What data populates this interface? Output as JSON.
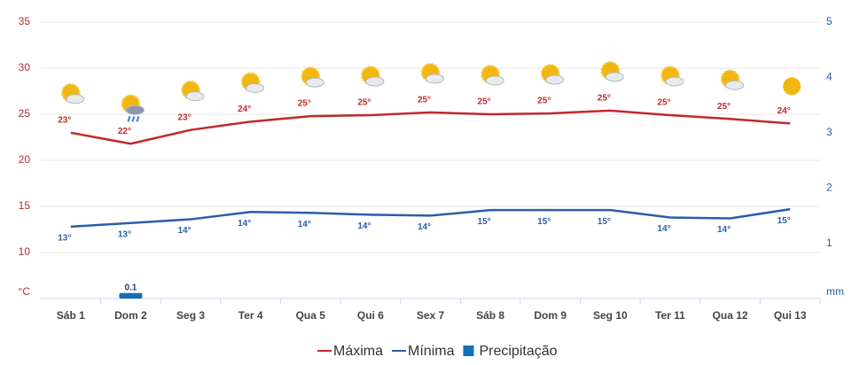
{
  "chart_data": {
    "type": "line",
    "categories": [
      "Sáb 1",
      "Dom 2",
      "Seg 3",
      "Ter 4",
      "Qua 5",
      "Qui 6",
      "Sex 7",
      "Sáb 8",
      "Dom 9",
      "Seg 10",
      "Ter 11",
      "Qua 12",
      "Qui 13"
    ],
    "ylim": [
      5,
      35
    ],
    "yticks": [
      {
        "value": 5,
        "label": "°C"
      },
      10,
      15,
      20,
      25,
      30,
      35
    ],
    "y2lim": [
      0,
      5
    ],
    "y2ticks": [
      {
        "value": 0,
        "label": "mm"
      },
      1,
      2,
      3,
      4,
      5
    ],
    "grid": true,
    "series": [
      {
        "name": "Máxima",
        "color": "#c0282d",
        "values": [
          23.0,
          21.8,
          23.3,
          24.2,
          24.8,
          24.9,
          25.2,
          25.0,
          25.1,
          25.4,
          24.9,
          24.5,
          24.0
        ],
        "value_labels": [
          "23°",
          "22°",
          "23°",
          "24°",
          "25°",
          "25°",
          "25°",
          "25°",
          "25°",
          "25°",
          "25°",
          "25°",
          "24°"
        ]
      },
      {
        "name": "Mínima",
        "color": "#2a5ea8",
        "values": [
          12.8,
          13.2,
          13.6,
          14.4,
          14.3,
          14.1,
          14.0,
          14.6,
          14.6,
          14.6,
          13.8,
          13.7,
          14.7
        ],
        "value_labels": [
          "13°",
          "13°",
          "14°",
          "14°",
          "14°",
          "14°",
          "14°",
          "15°",
          "15°",
          "15°",
          "14°",
          "14°",
          "15°"
        ]
      },
      {
        "name": "Precipitação",
        "type": "bar",
        "axis": "y2",
        "color": "#1370b5",
        "values": [
          0,
          0.1,
          0,
          0,
          0,
          0,
          0,
          0,
          0,
          0,
          0,
          0,
          0
        ],
        "value_labels": [
          null,
          "0.1",
          null,
          null,
          null,
          null,
          null,
          null,
          null,
          null,
          null,
          null,
          null
        ]
      }
    ]
  }
}
